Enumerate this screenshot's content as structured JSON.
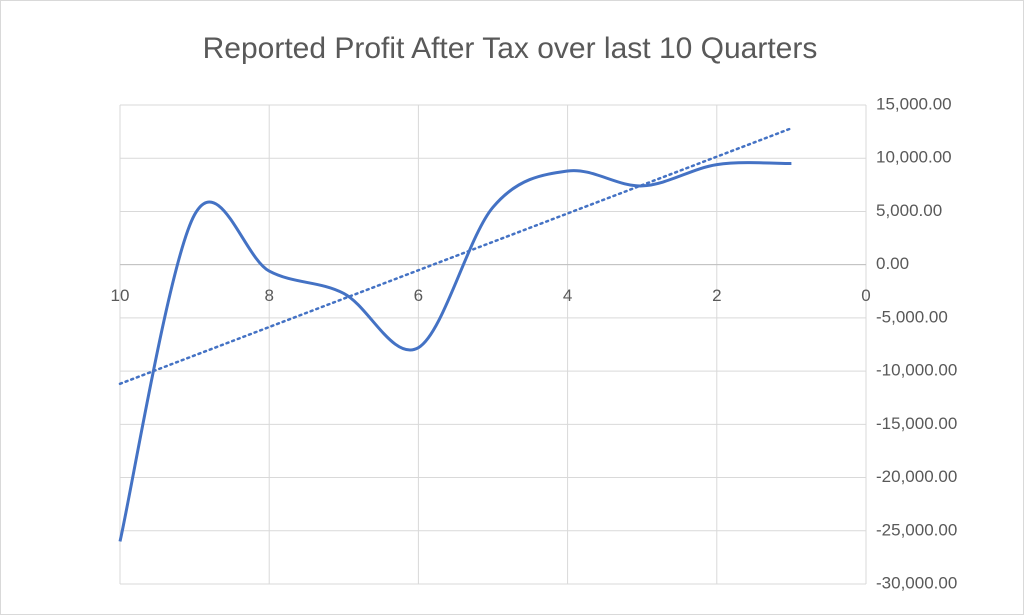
{
  "chart_data": {
    "type": "scatter-smooth",
    "title": "Reported Profit After Tax over last 10 Quarters",
    "x": [
      10,
      9,
      8,
      7,
      6,
      5,
      4,
      3,
      2,
      1
    ],
    "series": [
      {
        "color": "#4472c4",
        "values": [
          -26000,
          4700,
          -600,
          -2700,
          -7800,
          5400,
          8800,
          7400,
          9400,
          9500
        ]
      }
    ],
    "trendline": {
      "type": "linear",
      "style": "dotted"
    },
    "xlim": [
      0,
      10
    ],
    "x_reversed": true,
    "xticks": [
      10,
      8,
      6,
      4,
      2,
      0
    ],
    "ylim": [
      -30000,
      15000
    ],
    "yticks": [
      {
        "value": 15000,
        "label": "15,000.00"
      },
      {
        "value": 10000,
        "label": "10,000.00"
      },
      {
        "value": 5000,
        "label": "5,000.00"
      },
      {
        "value": 0,
        "label": "0.00"
      },
      {
        "value": -5000,
        "label": "-5,000.00"
      },
      {
        "value": -10000,
        "label": "-10,000.00"
      },
      {
        "value": -15000,
        "label": "-15,000.00"
      },
      {
        "value": -20000,
        "label": "-20,000.00"
      },
      {
        "value": -25000,
        "label": "-25,000.00"
      },
      {
        "value": -30000,
        "label": "-30,000.00"
      }
    ],
    "y_axis_side": "right",
    "grid": true
  }
}
